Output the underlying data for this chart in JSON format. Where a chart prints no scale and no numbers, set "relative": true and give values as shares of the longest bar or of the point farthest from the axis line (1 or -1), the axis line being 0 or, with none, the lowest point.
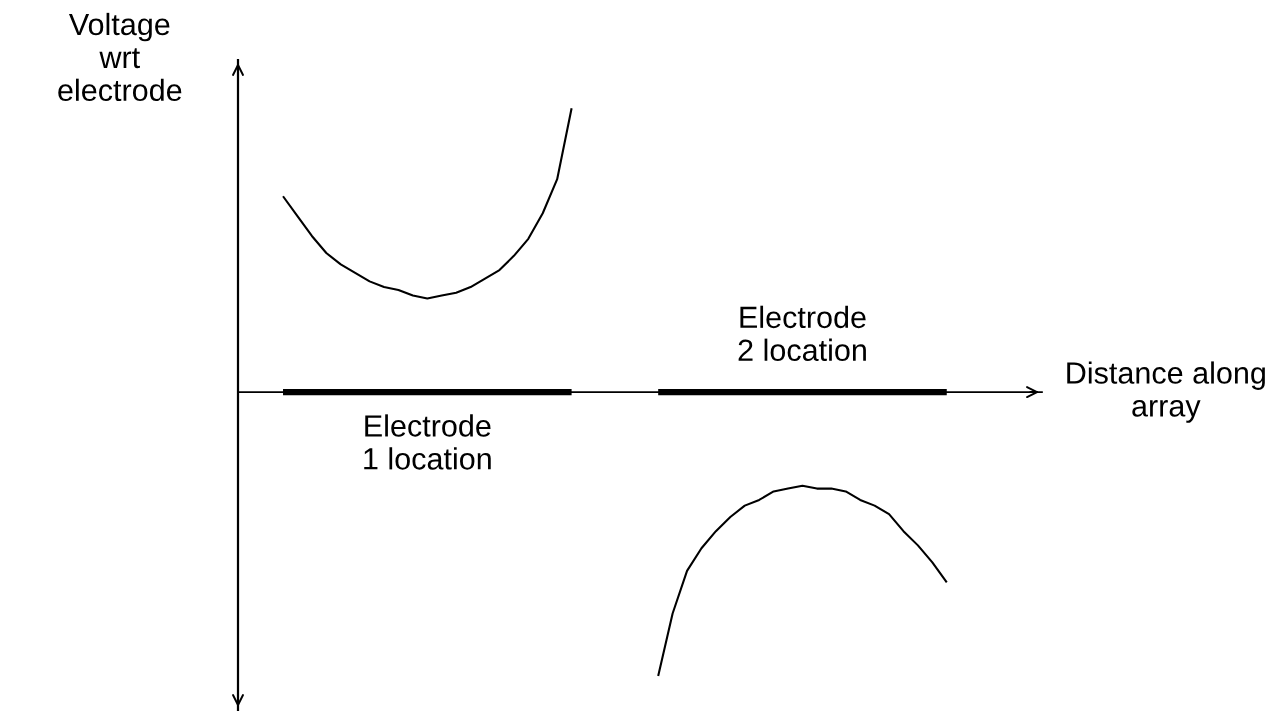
{
  "chart_data": {
    "type": "line",
    "relative": true,
    "xlabel": "Distance along\narray",
    "ylabel": "Voltage\nwrt\nelectrode",
    "categories": [
      null,
      null,
      null,
      null,
      null,
      null,
      null,
      null,
      null,
      null,
      null,
      null,
      null,
      null,
      null,
      null,
      null,
      null,
      null,
      null,
      null,
      null,
      null,
      null,
      null,
      null,
      null,
      null,
      null,
      null,
      null,
      null,
      null,
      null,
      null,
      null,
      null,
      null,
      null,
      null,
      null,
      null,
      null,
      null,
      null,
      null,
      null
    ],
    "series": [
      {
        "color": "#000000",
        "values": [
          0.69,
          0.62,
          0.55,
          0.49,
          0.45,
          0.42,
          0.39,
          0.37,
          0.36,
          0.34,
          0.33,
          0.34,
          0.35,
          0.37,
          0.4,
          0.43,
          0.48,
          0.54,
          0.63,
          0.75,
          1.0,
          null,
          null,
          null,
          null,
          null,
          null,
          null,
          null,
          null,
          null,
          null,
          null,
          null,
          null,
          null,
          null,
          null,
          null,
          null,
          null,
          null,
          null,
          null,
          null,
          null,
          null
        ]
      },
      {
        "color": "#000000",
        "values": [
          null,
          null,
          null,
          null,
          null,
          null,
          null,
          null,
          null,
          null,
          null,
          null,
          null,
          null,
          null,
          null,
          null,
          null,
          null,
          null,
          null,
          null,
          null,
          null,
          null,
          null,
          -1.0,
          -0.78,
          -0.63,
          -0.55,
          -0.49,
          -0.44,
          -0.4,
          -0.38,
          -0.35,
          -0.34,
          -0.33,
          -0.34,
          -0.34,
          -0.35,
          -0.38,
          -0.4,
          -0.43,
          -0.49,
          -0.54,
          -0.6,
          -0.67
        ]
      },
      {
        "name": "Electrode\n1 location",
        "color": "#000000",
        "values": [
          0,
          0,
          0,
          0,
          0,
          0,
          0,
          0,
          0,
          0,
          0,
          0,
          0,
          0,
          0,
          0,
          0,
          0,
          0,
          0,
          0,
          null,
          null,
          null,
          null,
          null,
          null,
          null,
          null,
          null,
          null,
          null,
          null,
          null,
          null,
          null,
          null,
          null,
          null,
          null,
          null,
          null,
          null,
          null,
          null,
          null,
          null
        ]
      },
      {
        "name": "Electrode\n2 location",
        "color": "#000000",
        "values": [
          null,
          null,
          null,
          null,
          null,
          null,
          null,
          null,
          null,
          null,
          null,
          null,
          null,
          null,
          null,
          null,
          null,
          null,
          null,
          null,
          null,
          null,
          null,
          null,
          null,
          null,
          0,
          0,
          0,
          0,
          0,
          0,
          0,
          0,
          0,
          0,
          0,
          0,
          0,
          0,
          0,
          0,
          0,
          0,
          0,
          0,
          0
        ]
      }
    ]
  }
}
